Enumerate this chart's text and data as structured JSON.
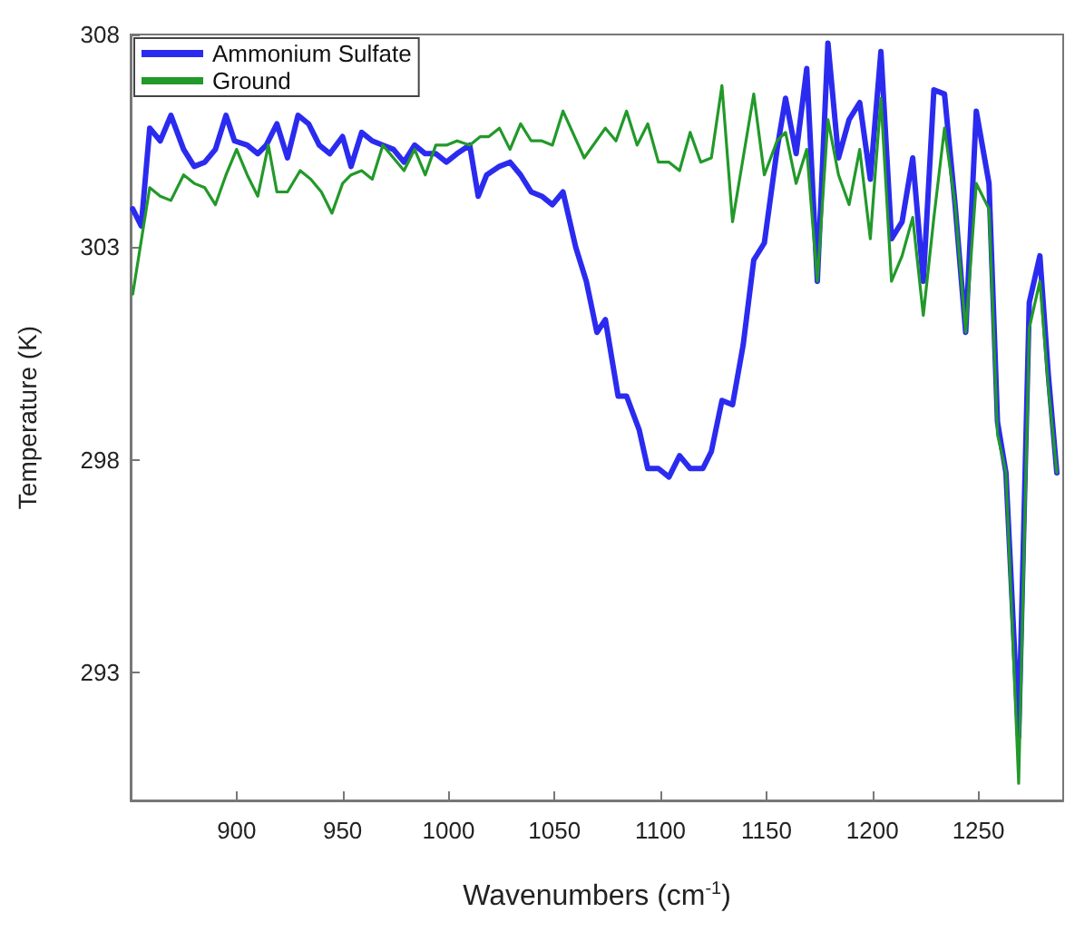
{
  "chart_data": {
    "type": "line",
    "xlabel": "Wavenumbers (cm$^{-1}$)",
    "ylabel": "Temperature (K)",
    "xlim": [
      850,
      1290
    ],
    "ylim": [
      290,
      308
    ],
    "xticks": [
      900,
      950,
      1000,
      1050,
      1100,
      1150,
      1200,
      1250
    ],
    "yticks": [
      293,
      298,
      303,
      308
    ],
    "grid": false,
    "legend": "top left",
    "marker": "none",
    "line_style": "solid",
    "series": [
      {
        "name": "Ammonium Sulfate",
        "color": "#2b2bf0",
        "x": [
          851,
          855,
          859,
          864,
          869,
          875,
          880,
          885,
          890,
          895,
          899,
          905,
          910,
          914,
          919,
          924,
          929,
          934,
          939,
          944,
          950,
          954,
          959,
          964,
          969,
          974,
          979,
          984,
          989,
          994,
          999,
          1004,
          1010,
          1014,
          1018,
          1024,
          1029,
          1034,
          1039,
          1044,
          1049,
          1054,
          1060,
          1065,
          1070,
          1074,
          1080,
          1084,
          1090,
          1094,
          1099,
          1104,
          1109,
          1114,
          1120,
          1124,
          1129,
          1134,
          1139,
          1144,
          1149,
          1155,
          1159,
          1164,
          1169,
          1174,
          1179,
          1184,
          1189,
          1194,
          1199,
          1204,
          1209,
          1214,
          1219,
          1224,
          1229,
          1234,
          1239,
          1244,
          1249,
          1255,
          1259,
          1263,
          1269,
          1274,
          1279,
          1283,
          1287
        ],
        "values": [
          303.9,
          303.5,
          305.8,
          305.5,
          306.1,
          305.3,
          304.9,
          305.0,
          305.3,
          306.1,
          305.5,
          305.4,
          305.2,
          305.4,
          305.9,
          305.1,
          306.1,
          305.9,
          305.4,
          305.2,
          305.6,
          304.9,
          305.7,
          305.5,
          305.4,
          305.3,
          305.0,
          305.4,
          305.2,
          305.2,
          305.0,
          305.2,
          305.4,
          304.2,
          304.7,
          304.9,
          305.0,
          304.7,
          304.3,
          304.2,
          304.0,
          304.3,
          303.0,
          302.2,
          301.0,
          301.3,
          299.5,
          299.5,
          298.7,
          297.8,
          297.8,
          297.6,
          298.1,
          297.8,
          297.8,
          298.2,
          299.4,
          299.3,
          300.7,
          302.7,
          303.1,
          305.3,
          306.5,
          305.2,
          307.2,
          302.2,
          307.8,
          305.1,
          306.0,
          306.4,
          304.6,
          307.6,
          303.2,
          303.6,
          305.1,
          302.2,
          306.7,
          306.6,
          304.0,
          301.0,
          306.2,
          304.5,
          298.9,
          297.7,
          291.5,
          301.7,
          302.8,
          300.0,
          297.7
        ]
      },
      {
        "name": "Ground",
        "color": "#22992a",
        "x": [
          851,
          859,
          864,
          869,
          875,
          880,
          885,
          890,
          895,
          900,
          905,
          910,
          915,
          919,
          924,
          930,
          935,
          940,
          945,
          950,
          954,
          959,
          964,
          969,
          974,
          979,
          984,
          989,
          994,
          999,
          1004,
          1010,
          1015,
          1019,
          1024,
          1029,
          1034,
          1039,
          1044,
          1049,
          1054,
          1064,
          1074,
          1079,
          1084,
          1089,
          1094,
          1099,
          1104,
          1109,
          1114,
          1119,
          1124,
          1129,
          1134,
          1139,
          1144,
          1149,
          1155,
          1159,
          1164,
          1169,
          1174,
          1179,
          1184,
          1189,
          1194,
          1199,
          1204,
          1209,
          1214,
          1219,
          1224,
          1229,
          1234,
          1239,
          1244,
          1249,
          1255,
          1259,
          1263,
          1269,
          1274,
          1279,
          1283,
          1287
        ],
        "values": [
          301.9,
          304.4,
          304.2,
          304.1,
          304.7,
          304.5,
          304.4,
          304.0,
          304.7,
          305.3,
          304.7,
          304.2,
          305.4,
          304.3,
          304.3,
          304.8,
          304.6,
          304.3,
          303.8,
          304.5,
          304.7,
          304.8,
          304.6,
          305.4,
          305.1,
          304.8,
          305.3,
          304.7,
          305.4,
          305.4,
          305.5,
          305.4,
          305.6,
          305.6,
          305.8,
          305.3,
          305.9,
          305.5,
          305.5,
          305.4,
          306.2,
          305.1,
          305.8,
          305.5,
          306.2,
          305.4,
          305.9,
          305.0,
          305.0,
          304.8,
          305.7,
          305.0,
          305.1,
          306.8,
          303.6,
          305.1,
          306.6,
          304.7,
          305.5,
          305.7,
          304.5,
          305.3,
          302.2,
          306.0,
          304.7,
          304.0,
          305.3,
          303.2,
          306.5,
          302.2,
          302.8,
          303.7,
          301.4,
          303.7,
          305.8,
          304.0,
          301.0,
          304.5,
          303.9,
          298.6,
          297.7,
          290.4,
          301.1,
          302.2,
          299.7,
          297.7
        ]
      }
    ]
  }
}
